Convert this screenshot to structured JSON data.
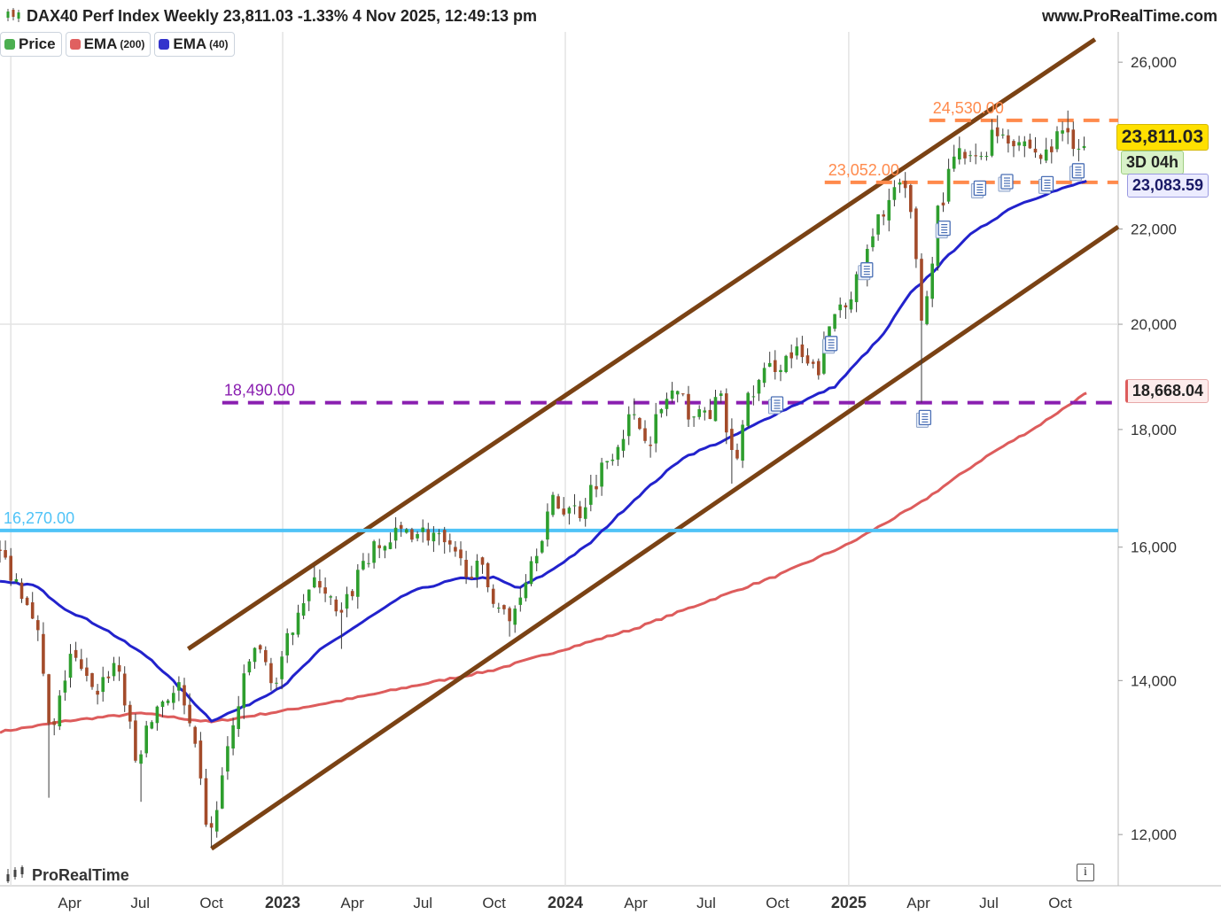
{
  "header": {
    "title": "DAX40 Perf Index Weekly 23,811.03 -1.33% 4 Nov 2025, 12:49:13 pm",
    "site": "www.ProRealTime.com"
  },
  "legend": [
    {
      "label": "Price",
      "sub": "",
      "color": "#4caf50"
    },
    {
      "label": "EMA",
      "sub": "(200)",
      "color": "#e06060"
    },
    {
      "label": "EMA",
      "sub": "(40)",
      "color": "#3333cc"
    }
  ],
  "price_boxes": {
    "last": {
      "text": "23,811.03",
      "bg": "#ffe000",
      "color": "#000000"
    },
    "countdown": {
      "text": "3D 04h",
      "bg": "#d9f2c9",
      "color": "#000000"
    },
    "ema40": {
      "text": "23,083.59",
      "bg": "#ececff",
      "color": "#1a1a66"
    },
    "ema200": {
      "text": "18,668.04",
      "bg": "#fdecec",
      "color": "#000000"
    }
  },
  "footer": {
    "logo": "ProRealTime",
    "info": "i"
  },
  "colors": {
    "up": "#2e9e2e",
    "down": "#a34b2a",
    "ema40": "#2222cc",
    "ema200": "#dd5c5c",
    "channel": "#7a4214",
    "level_blue": "#4fc3f7",
    "level_purple": "#8a1fb0",
    "level_orange": "#ff8a4c",
    "grid": "#e3e3e3"
  },
  "chart_data": {
    "type": "candlestick",
    "title": "DAX40 Perf Index Weekly",
    "y_scale": "log",
    "y_ticks": [
      "12,000",
      "14,000",
      "16,000",
      "18,000",
      "20,000",
      "22,000",
      "26,000"
    ],
    "y_tick_values": [
      12000,
      14000,
      16000,
      18000,
      20000,
      22000,
      26000
    ],
    "x_ticks": [
      "Apr",
      "Jul",
      "Oct",
      "2023",
      "Apr",
      "Jul",
      "Oct",
      "2024",
      "Apr",
      "Jul",
      "Oct",
      "2025",
      "Apr",
      "Jul",
      "Oct"
    ],
    "x_tick_dates": [
      "2022-04-01",
      "2022-07-01",
      "2022-10-01",
      "2023-01-01",
      "2023-04-01",
      "2023-07-01",
      "2023-10-01",
      "2024-01-01",
      "2024-04-01",
      "2024-07-01",
      "2024-10-01",
      "2025-01-01",
      "2025-04-01",
      "2025-07-01",
      "2025-10-01"
    ],
    "x_range": [
      "2022-01-01",
      "2025-12-15"
    ],
    "y_range": [
      11400,
      26800
    ],
    "price_anchors": [
      [
        "2022-01-01",
        15900
      ],
      [
        "2022-02-15",
        15000
      ],
      [
        "2022-03-08",
        13100
      ],
      [
        "2022-04-01",
        14400
      ],
      [
        "2022-05-01",
        13800
      ],
      [
        "2022-06-01",
        14300
      ],
      [
        "2022-06-25",
        12900
      ],
      [
        "2022-07-25",
        13700
      ],
      [
        "2022-08-20",
        13900
      ],
      [
        "2022-09-10",
        13000
      ],
      [
        "2022-09-29",
        11900
      ],
      [
        "2022-10-25",
        13200
      ],
      [
        "2022-11-25",
        14500
      ],
      [
        "2022-12-25",
        13950
      ],
      [
        "2023-01-20",
        15100
      ],
      [
        "2023-02-20",
        15500
      ],
      [
        "2023-03-15",
        14800
      ],
      [
        "2023-04-15",
        15800
      ],
      [
        "2023-05-20",
        16100
      ],
      [
        "2023-06-10",
        16300
      ],
      [
        "2023-07-15",
        16200
      ],
      [
        "2023-08-15",
        15750
      ],
      [
        "2023-09-15",
        15600
      ],
      [
        "2023-10-20",
        14800
      ],
      [
        "2023-11-15",
        15700
      ],
      [
        "2023-12-15",
        16700
      ],
      [
        "2024-01-20",
        16600
      ],
      [
        "2024-02-20",
        17400
      ],
      [
        "2024-03-25",
        18200
      ],
      [
        "2024-04-20",
        17900
      ],
      [
        "2024-05-15",
        18700
      ],
      [
        "2024-06-20",
        18200
      ],
      [
        "2024-07-20",
        18500
      ],
      [
        "2024-08-06",
        17300
      ],
      [
        "2024-08-25",
        18600
      ],
      [
        "2024-09-25",
        19200
      ],
      [
        "2024-10-25",
        19400
      ],
      [
        "2024-11-20",
        19000
      ],
      [
        "2024-12-15",
        20300
      ],
      [
        "2025-01-15",
        20900
      ],
      [
        "2025-02-15",
        22500
      ],
      [
        "2025-03-10",
        23000
      ],
      [
        "2025-03-25",
        22100
      ],
      [
        "2025-04-07",
        19800
      ],
      [
        "2025-04-25",
        22300
      ],
      [
        "2025-05-20",
        23700
      ],
      [
        "2025-06-15",
        23500
      ],
      [
        "2025-07-10",
        24300
      ],
      [
        "2025-08-15",
        24000
      ],
      [
        "2025-09-10",
        23600
      ],
      [
        "2025-10-08",
        24400
      ],
      [
        "2025-10-20",
        24000
      ],
      [
        "2025-11-04",
        23811
      ]
    ],
    "lows": [
      [
        "2022-03-07",
        12450
      ],
      [
        "2022-07-05",
        12400
      ],
      [
        "2022-09-29",
        11850
      ],
      [
        "2023-03-20",
        14450
      ],
      [
        "2023-10-23",
        14630
      ],
      [
        "2024-08-05",
        17050
      ],
      [
        "2025-04-07",
        18490
      ]
    ],
    "highs": [
      [
        "2025-10-09",
        24770
      ],
      [
        "2025-07-10",
        24650
      ],
      [
        "2024-03-28",
        18570
      ]
    ],
    "ema40_anchors": [
      [
        "2022-01-01",
        15450
      ],
      [
        "2022-02-15",
        15400
      ],
      [
        "2022-03-25",
        15050
      ],
      [
        "2022-05-15",
        14750
      ],
      [
        "2022-07-15",
        14300
      ],
      [
        "2022-08-30",
        13800
      ],
      [
        "2022-10-01",
        13450
      ],
      [
        "2022-11-15",
        13650
      ],
      [
        "2023-01-05",
        13950
      ],
      [
        "2023-02-20",
        14450
      ],
      [
        "2023-04-15",
        14850
      ],
      [
        "2023-06-15",
        15300
      ],
      [
        "2023-08-15",
        15500
      ],
      [
        "2023-10-01",
        15520
      ],
      [
        "2023-11-01",
        15350
      ],
      [
        "2023-12-10",
        15600
      ],
      [
        "2024-02-01",
        16050
      ],
      [
        "2024-04-01",
        16800
      ],
      [
        "2024-06-01",
        17500
      ],
      [
        "2024-08-01",
        17850
      ],
      [
        "2024-10-01",
        18300
      ],
      [
        "2024-12-15",
        18800
      ],
      [
        "2025-02-15",
        19800
      ],
      [
        "2025-03-20",
        20600
      ],
      [
        "2025-04-15",
        21000
      ],
      [
        "2025-06-01",
        21800
      ],
      [
        "2025-08-01",
        22500
      ],
      [
        "2025-09-15",
        22800
      ],
      [
        "2025-11-04",
        23083.59
      ]
    ],
    "ema200_anchors": [
      [
        "2022-01-01",
        13300
      ],
      [
        "2022-04-01",
        13450
      ],
      [
        "2022-07-01",
        13550
      ],
      [
        "2022-10-01",
        13430
      ],
      [
        "2023-01-01",
        13580
      ],
      [
        "2023-04-01",
        13750
      ],
      [
        "2023-07-01",
        13950
      ],
      [
        "2023-10-01",
        14150
      ],
      [
        "2024-01-01",
        14450
      ],
      [
        "2024-04-01",
        14750
      ],
      [
        "2024-07-01",
        15150
      ],
      [
        "2024-10-01",
        15550
      ],
      [
        "2025-01-01",
        16050
      ],
      [
        "2025-04-01",
        16700
      ],
      [
        "2025-07-01",
        17550
      ],
      [
        "2025-09-01",
        18050
      ],
      [
        "2025-11-04",
        18668.04
      ]
    ],
    "channel_lines": [
      {
        "name": "upper",
        "from": [
          "2022-09-01",
          14450
        ],
        "to": [
          "2025-11-15",
          26600
        ]
      },
      {
        "name": "lower",
        "from": [
          "2022-10-01",
          11830
        ],
        "to": [
          "2025-12-15",
          22050
        ]
      }
    ],
    "levels": [
      {
        "value": 16270,
        "label": "16,270.00",
        "color": "#4fc3f7",
        "style": "solid",
        "from": "2022-01-01",
        "to": "2025-12-15"
      },
      {
        "value": 18490,
        "label": "18,490.00",
        "color": "#8a1fb0",
        "style": "dashed",
        "from": "2022-10-15",
        "to": "2025-12-15"
      },
      {
        "value": 23052,
        "label": "23,052.00",
        "color": "#ff8a4c",
        "style": "dashed",
        "from": "2024-12-01",
        "to": "2025-12-15"
      },
      {
        "value": 24530,
        "label": "24,530.00",
        "color": "#ff8a4c",
        "style": "dashed",
        "from": "2025-04-15",
        "to": "2025-12-15"
      }
    ],
    "event_markers": [
      [
        "2024-10-01",
        18450
      ],
      [
        "2024-12-10",
        19600
      ],
      [
        "2025-01-25",
        21100
      ],
      [
        "2025-04-10",
        18200
      ],
      [
        "2025-05-05",
        22000
      ],
      [
        "2025-06-20",
        22900
      ],
      [
        "2025-07-25",
        23050
      ],
      [
        "2025-09-15",
        23000
      ],
      [
        "2025-10-25",
        23300
      ]
    ],
    "series": [
      {
        "name": "Price",
        "type": "candlestick"
      },
      {
        "name": "EMA (200)",
        "type": "line"
      },
      {
        "name": "EMA (40)",
        "type": "line"
      }
    ],
    "last_price": 23811.03,
    "ema40_last": 23083.59,
    "ema200_last": 18668.04
  }
}
